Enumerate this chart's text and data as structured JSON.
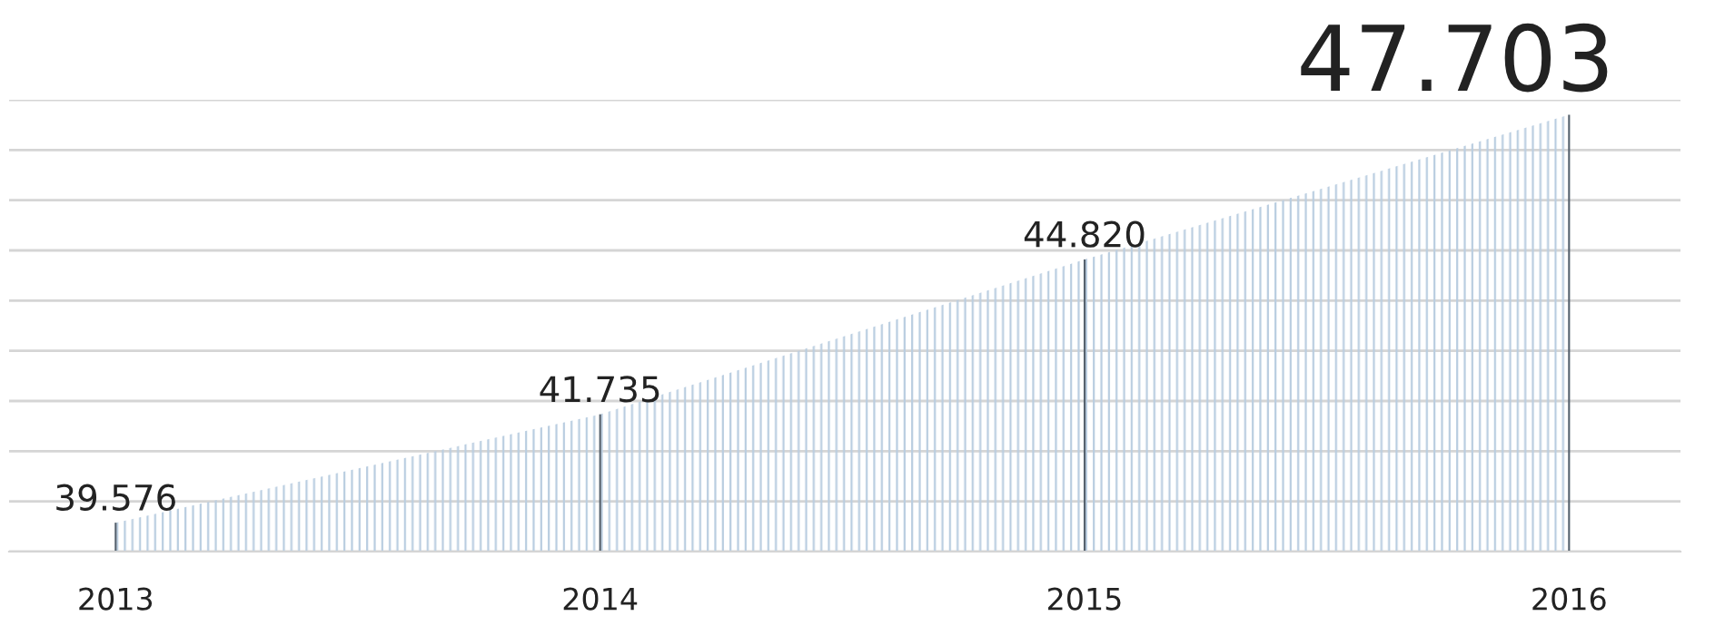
{
  "chart_data": {
    "type": "area",
    "x": [
      2013,
      2014,
      2015,
      2016
    ],
    "series": [
      {
        "color": "#b9cde0",
        "values": [
          39.576,
          41.735,
          44.82,
          47.703
        ],
        "value_labels": [
          "39.576",
          "41.735",
          "44.820",
          "47.703"
        ]
      },
      {
        "type": "bar",
        "color": "#56626e",
        "values": [
          39.576,
          41.735,
          44.82,
          47.703
        ]
      }
    ],
    "xlim": [
      2012.78,
      2016.23
    ],
    "xticks": [
      2013,
      2014,
      2015,
      2016
    ],
    "ylim": [
      39,
      48
    ],
    "yticks": [
      {
        "value": 39,
        "label": null
      },
      {
        "value": 40,
        "label": null
      },
      {
        "value": 41,
        "label": null
      },
      {
        "value": 42,
        "label": null
      },
      {
        "value": 43,
        "label": null
      },
      {
        "value": 44,
        "label": null
      },
      {
        "value": 45,
        "label": null
      },
      {
        "value": 46,
        "label": null
      },
      {
        "value": 47,
        "label": null
      },
      {
        "value": 48,
        "label": null
      }
    ],
    "grid": "y",
    "tick_labels": "x"
  }
}
